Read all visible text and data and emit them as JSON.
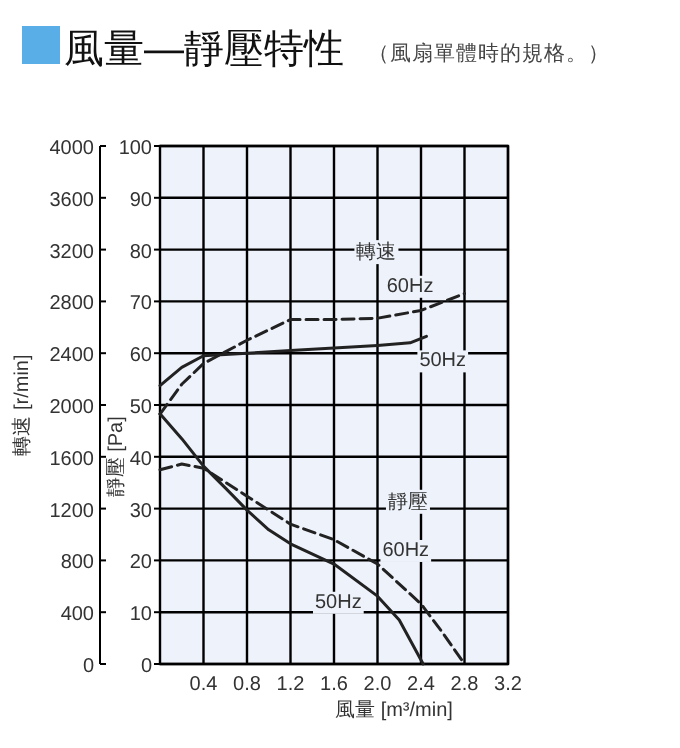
{
  "chart_data": {
    "type": "line",
    "title": "風量—靜壓特性",
    "subtitle": "（風扇單體時的規格。）",
    "xlabel": "風量 [m³/min]",
    "ylabel": "靜壓 [Pa]",
    "y2label": "轉速 [r/min]",
    "xlim": [
      0,
      3.2
    ],
    "xticks": [
      0.4,
      0.8,
      1.2,
      1.6,
      {
        "value": 2,
        "label": "2.0"
      },
      2.4,
      2.8,
      3.2
    ],
    "ylim": [
      0,
      100
    ],
    "yticks": [
      0,
      10,
      20,
      30,
      40,
      50,
      60,
      70,
      80,
      90,
      100
    ],
    "y2lim": [
      0,
      4000
    ],
    "y2ticks": [
      0,
      400,
      800,
      1200,
      1600,
      2000,
      2400,
      2800,
      3200,
      3600,
      4000
    ],
    "grid": true,
    "series": [
      {
        "color": "#222222",
        "line_style": "dashed",
        "axis": "y2",
        "x": [
          0,
          0.2,
          0.4,
          0.8,
          1.2,
          1.6,
          2.0,
          2.4,
          2.8
        ],
        "values": [
          1930,
          2160,
          2320,
          2500,
          2660,
          2660,
          2670,
          2730,
          2860
        ]
      },
      {
        "color": "#222222",
        "line_style": "solid",
        "axis": "y2",
        "x": [
          0,
          0.2,
          0.4,
          0.8,
          1.2,
          1.6,
          2.0,
          2.3,
          2.45
        ],
        "values": [
          2150,
          2290,
          2380,
          2400,
          2420,
          2440,
          2460,
          2480,
          2530
        ]
      },
      {
        "color": "#222222",
        "line_style": "dashed",
        "x": [
          0,
          0.2,
          0.4,
          0.8,
          1.2,
          1.6,
          2.0,
          2.4,
          2.6,
          2.8
        ],
        "values": [
          37.5,
          38.6,
          37.8,
          32.4,
          27,
          24,
          19.3,
          11.6,
          6,
          0
        ]
      },
      {
        "color": "#222222",
        "line_style": "solid",
        "x": [
          0,
          0.2,
          0.4,
          0.6,
          0.8,
          1.0,
          1.2,
          1.6,
          2.0,
          2.2,
          2.42
        ],
        "values": [
          48.3,
          43.5,
          38.2,
          34,
          29.7,
          25.9,
          23.2,
          19.3,
          13.1,
          8.5,
          0
        ]
      }
    ],
    "annotations": [
      {
        "text": "轉速",
        "x": 1.99,
        "y": 79.9
      },
      {
        "text": "60Hz",
        "x": 2.3,
        "y": 73.4
      },
      {
        "text": "50Hz",
        "x": 2.6,
        "y": 59
      },
      {
        "text": "靜壓",
        "x": 2.28,
        "y": 31.7
      },
      {
        "text": "60Hz",
        "x": 2.26,
        "y": 22.4
      },
      {
        "text": "50Hz",
        "x": 1.64,
        "y": 12.4
      }
    ]
  }
}
